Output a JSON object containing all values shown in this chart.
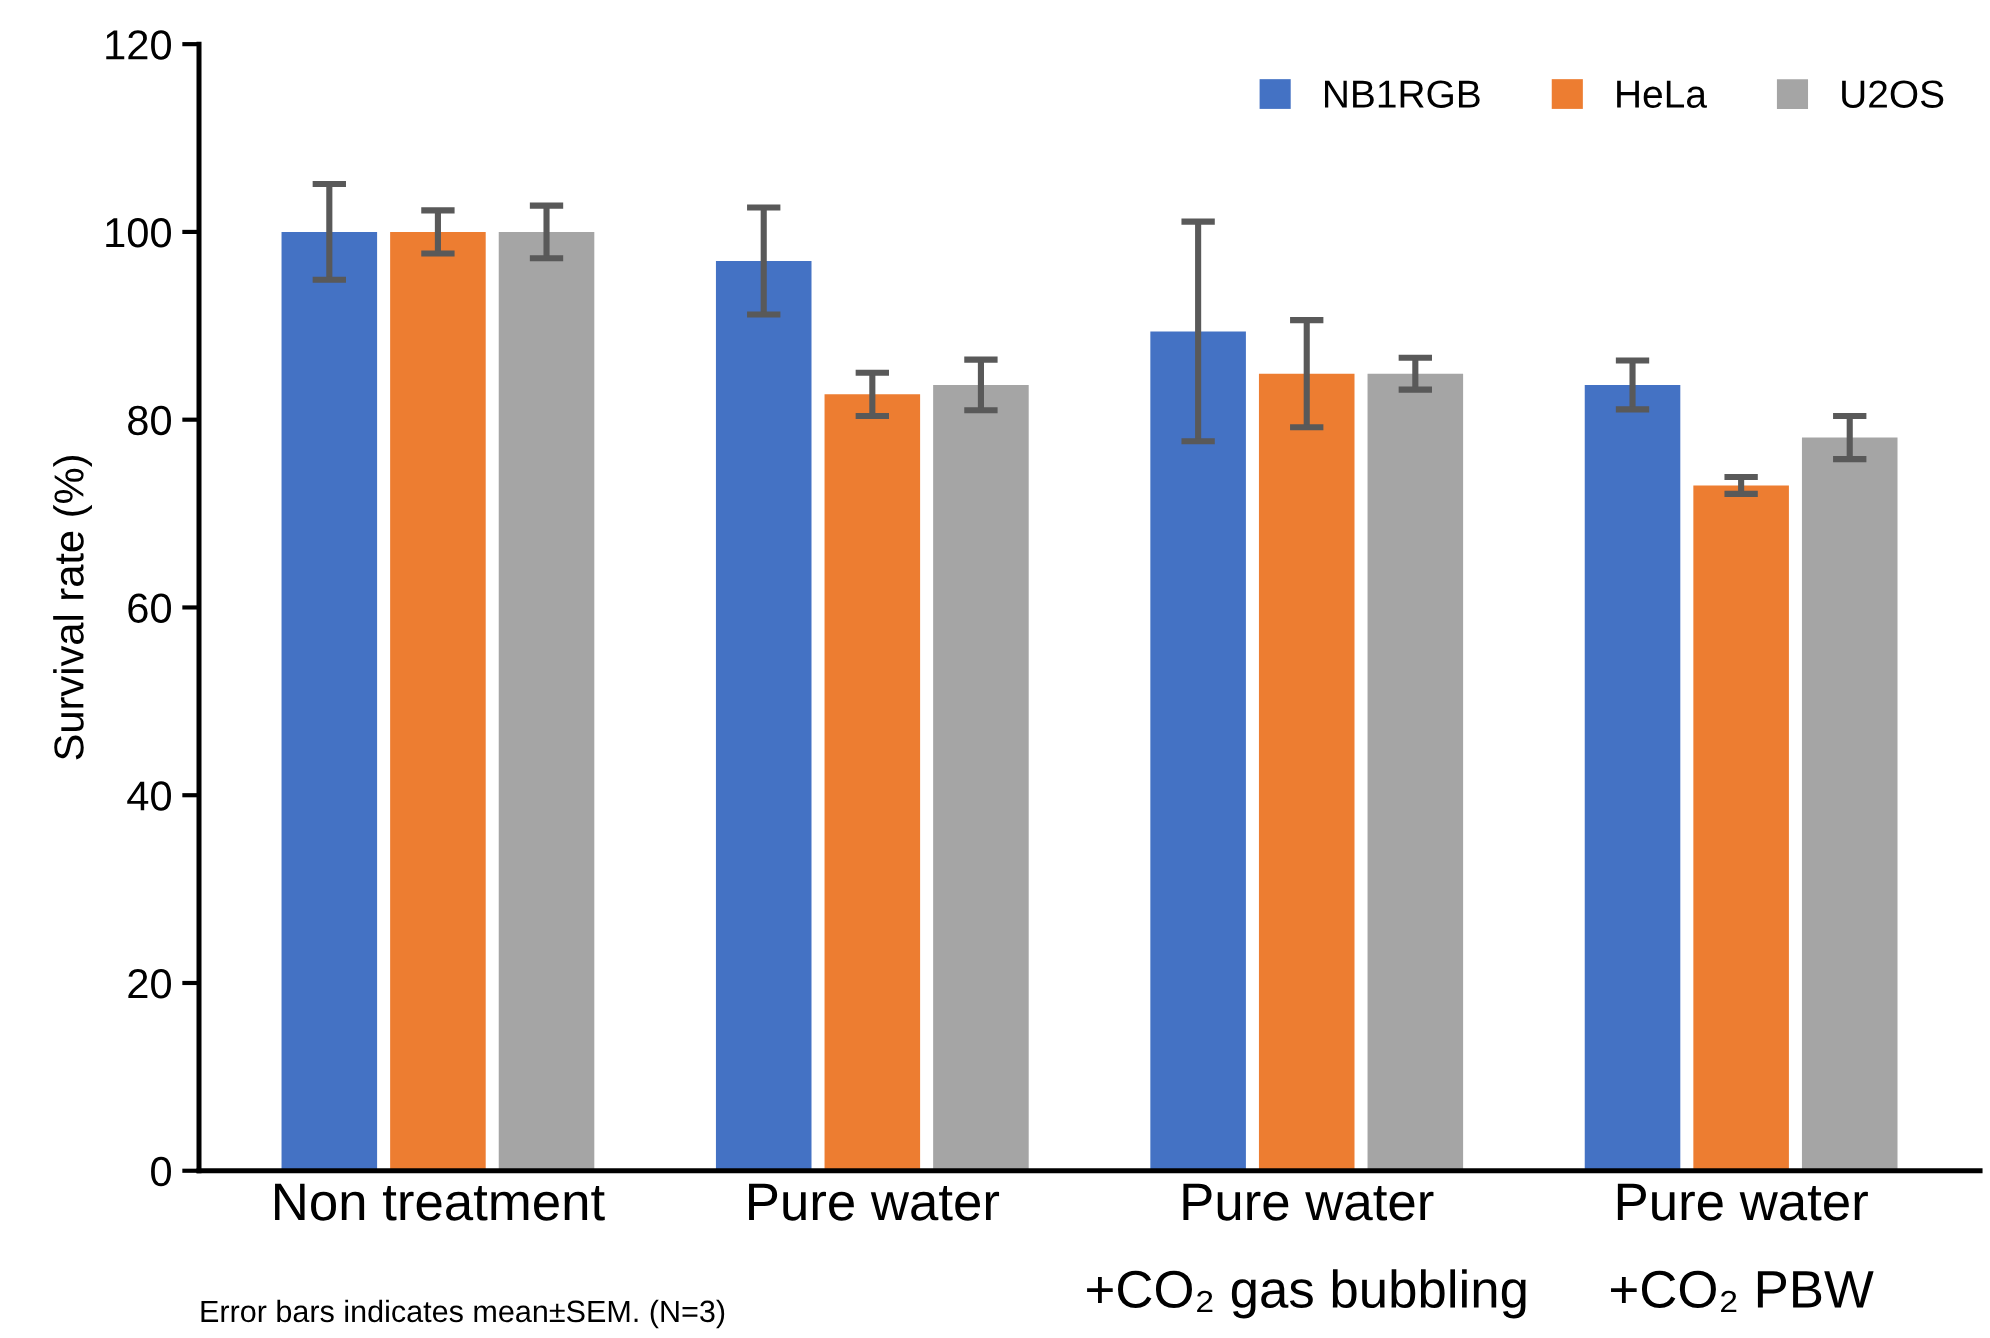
{
  "chart_data": {
    "type": "bar",
    "categories": [
      "Non treatment",
      "Pure water",
      "Pure water\n+CO₂ gas bubbling",
      "Pure water\n+CO₂ PBW"
    ],
    "ylabel": "Survival rate (%)",
    "ylim": [
      0,
      120
    ],
    "yticks": [
      0,
      20,
      40,
      60,
      80,
      100,
      120
    ],
    "grid": false,
    "legend": "top right",
    "series": [
      {
        "name": "NB1RGB",
        "color": "#4472c4",
        "values": [
          100,
          96.9,
          89.4,
          83.7
        ],
        "errors": [
          5.1,
          5.7,
          11.7,
          2.6
        ]
      },
      {
        "name": "HeLa",
        "color": "#ed7d31",
        "values": [
          100,
          82.7,
          84.9,
          73.0
        ],
        "errors": [
          2.3,
          2.3,
          5.7,
          0.9
        ]
      },
      {
        "name": "U2OS",
        "color": "#a5a5a5",
        "values": [
          100,
          83.7,
          84.9,
          78.1
        ],
        "errors": [
          2.8,
          2.7,
          1.7,
          2.3
        ]
      }
    ],
    "annotations": [
      "Error bars indicates mean±SEM. (N=3)"
    ]
  }
}
